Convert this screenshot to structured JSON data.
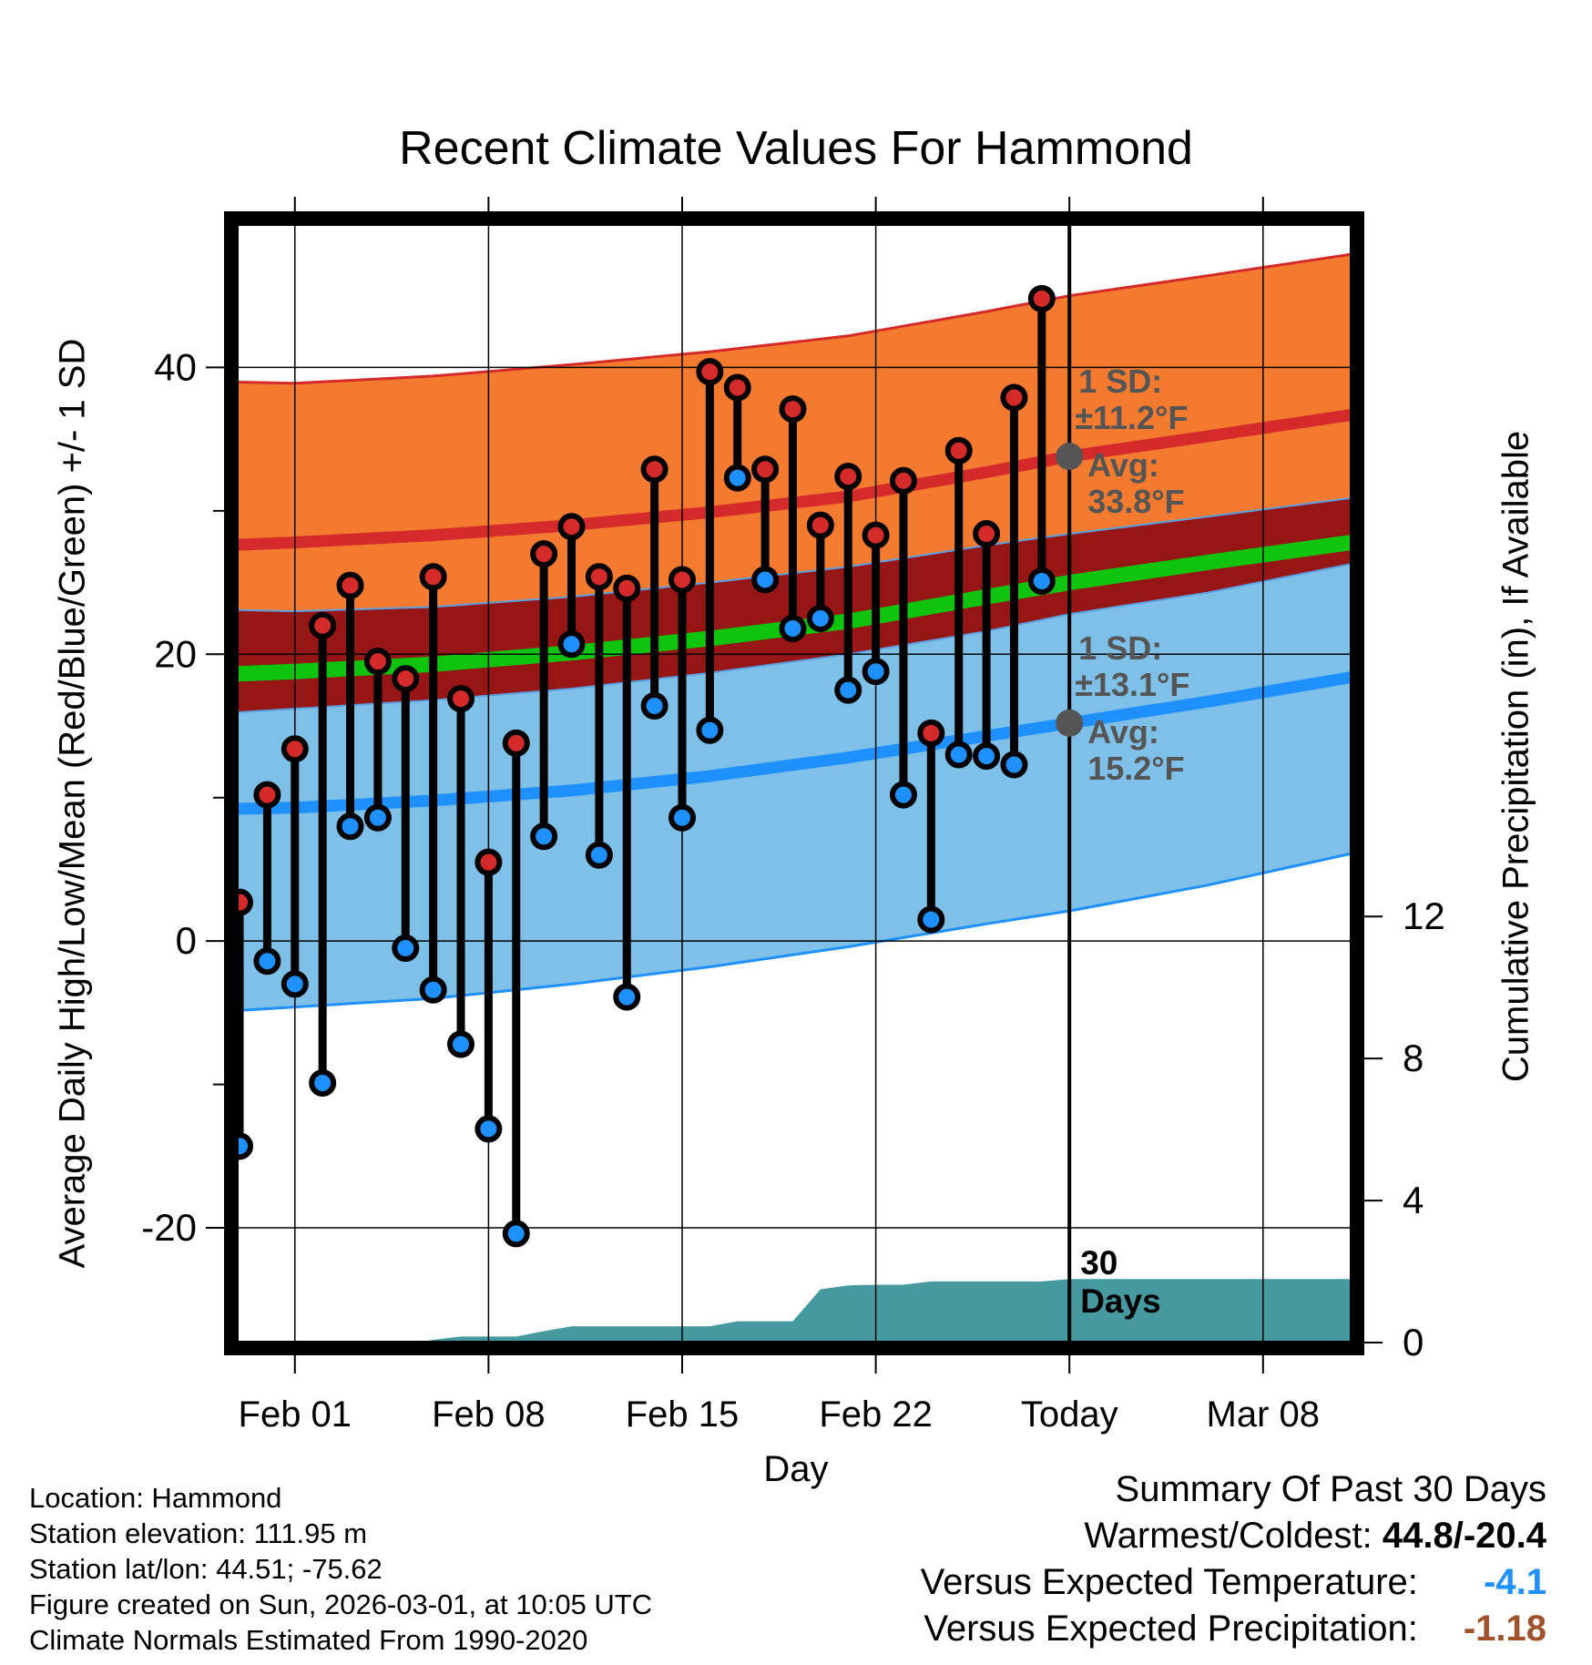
{
  "title": "Recent Climate Values For Hammond",
  "y_label_left": "Average Daily High/Low/Mean (Red/Blue/Green) +/- 1 SD",
  "y_label_right": "Cumulative Precipitation (in), If Available",
  "x_label": "Day",
  "info": [
    "Location: Hammond",
    "Station elevation: 111.95 m",
    "Station lat/lon: 44.51; -75.62",
    "Figure created on Sun, 2026-03-01, at 10:05 UTC",
    "Climate Normals Estimated From 1990-2020"
  ],
  "summary": {
    "heading": "Summary Of Past 30 Days",
    "warm_cold_label": "Warmest/Coldest:",
    "warm_cold_value": "44.8/-20.4",
    "temp_label": "Versus Expected Temperature:",
    "temp_value": "-4.1",
    "precip_label": "Versus Expected Precipitation:",
    "precip_value": "-1.18"
  },
  "colors": {
    "high_band": "#f47a30",
    "high_line": "#d42a2a",
    "mean_band": "#961515",
    "mean_line": "#0ec40e",
    "low_band": "#7fc0e8",
    "low_line": "#1e90ff",
    "precip": "#45999f",
    "sd_text": "#555555",
    "temp_value": "#1e90ff",
    "precip_value": "#a0522d"
  },
  "chart_data": {
    "type": "line",
    "x_unit": "day offset from Feb 01",
    "xlim": [
      -2.1,
      38.2
    ],
    "ylim": [
      -28,
      50
    ],
    "precip_lim": [
      0,
      31.5
    ],
    "y_ticks": [
      -20,
      0,
      20,
      40
    ],
    "precip_ticks": [
      0,
      4,
      8,
      12
    ],
    "x_ticks": [
      {
        "x": 0,
        "label": "Feb 01"
      },
      {
        "x": 7,
        "label": "Feb 08"
      },
      {
        "x": 14,
        "label": "Feb 15"
      },
      {
        "x": 21,
        "label": "Feb 22"
      },
      {
        "x": 28,
        "label": "Today"
      },
      {
        "x": 35,
        "label": "Mar 08"
      }
    ],
    "today_x": 28,
    "normal_x": [
      -2.5,
      0,
      5,
      10,
      15,
      20,
      25,
      28,
      33,
      38.2
    ],
    "normal_high": [
      27.6,
      27.8,
      28.3,
      29.0,
      29.9,
      31.0,
      32.7,
      33.8,
      35.2,
      36.7
    ],
    "normal_high_upper": [
      39.0,
      38.9,
      39.4,
      40.2,
      41.1,
      42.2,
      43.9,
      45.0,
      46.4,
      47.9
    ],
    "normal_high_lower": [
      23.1,
      23.0,
      23.3,
      24.0,
      25.0,
      26.1,
      27.6,
      28.4,
      29.6,
      30.9
    ],
    "normal_mean": [
      18.6,
      18.8,
      19.3,
      20.1,
      21.1,
      22.3,
      24.0,
      25.0,
      26.4,
      27.8
    ],
    "normal_low": [
      9.2,
      9.3,
      9.8,
      10.5,
      11.5,
      12.8,
      14.3,
      15.2,
      16.7,
      18.4
    ],
    "normal_low_upper": [
      15.9,
      16.2,
      16.8,
      17.6,
      18.7,
      20.0,
      21.6,
      22.8,
      24.3,
      26.3
    ],
    "normal_low_lower": [
      -4.9,
      -4.6,
      -4.0,
      -3.0,
      -1.8,
      -0.4,
      1.2,
      2.1,
      3.9,
      6.1
    ],
    "sd_annotations": [
      {
        "x": 28,
        "y": 33.8,
        "line1": "1 SD:",
        "line2": "±11.2°F",
        "line3": "Avg:",
        "line4": "33.8°F"
      },
      {
        "x": 28,
        "y": 15.2,
        "line1": "1 SD:",
        "line2": "±13.1°F",
        "line3": "Avg:",
        "line4": "15.2°F"
      }
    ],
    "days_label": [
      "30",
      "Days"
    ],
    "series": [
      {
        "name": "High",
        "x": [
          -2,
          -1,
          0,
          1,
          2,
          3,
          4,
          5,
          6,
          7,
          8,
          9,
          10,
          11,
          12,
          13,
          14,
          15,
          16,
          17,
          18,
          19,
          20,
          21,
          22,
          23,
          24,
          25,
          26,
          27
        ],
        "values": [
          2.7,
          10.2,
          13.4,
          22.0,
          24.8,
          19.5,
          18.3,
          25.4,
          16.9,
          5.5,
          13.8,
          27.0,
          28.9,
          25.4,
          24.6,
          32.9,
          25.2,
          39.7,
          38.6,
          32.9,
          37.1,
          29.0,
          32.4,
          28.3,
          32.1,
          14.5,
          34.2,
          28.4,
          37.9,
          44.8
        ]
      },
      {
        "name": "Low",
        "x": [
          -2,
          -1,
          0,
          1,
          2,
          3,
          4,
          5,
          6,
          7,
          8,
          9,
          10,
          11,
          12,
          13,
          14,
          15,
          16,
          17,
          18,
          19,
          20,
          21,
          22,
          23,
          24,
          25,
          26,
          27
        ],
        "values": [
          -14.3,
          -1.4,
          -3.0,
          -9.9,
          8.0,
          8.6,
          -0.5,
          -3.4,
          -7.2,
          -13.1,
          -20.4,
          7.3,
          20.7,
          6.0,
          -3.9,
          16.4,
          8.6,
          14.7,
          32.3,
          25.2,
          21.8,
          22.5,
          17.5,
          18.8,
          10.2,
          1.5,
          13.0,
          12.9,
          12.3,
          25.1
        ]
      },
      {
        "name": "Cumulative Precipitation",
        "x": [
          -2.1,
          3.2,
          4.5,
          5.0,
          6.0,
          7.0,
          8.0,
          9.0,
          10.0,
          11.0,
          12.0,
          13.0,
          14.0,
          15.0,
          16.0,
          18.0,
          19.0,
          20.0,
          21.0,
          22.0,
          23.0,
          24.0,
          25.0,
          26.0,
          27.0,
          28.0,
          38.2
        ],
        "values": [
          0,
          0,
          0,
          0.08,
          0.17,
          0.17,
          0.17,
          0.32,
          0.46,
          0.46,
          0.46,
          0.46,
          0.46,
          0.46,
          0.6,
          0.6,
          1.5,
          1.61,
          1.63,
          1.63,
          1.72,
          1.72,
          1.72,
          1.72,
          1.72,
          1.79,
          1.79
        ]
      }
    ]
  }
}
